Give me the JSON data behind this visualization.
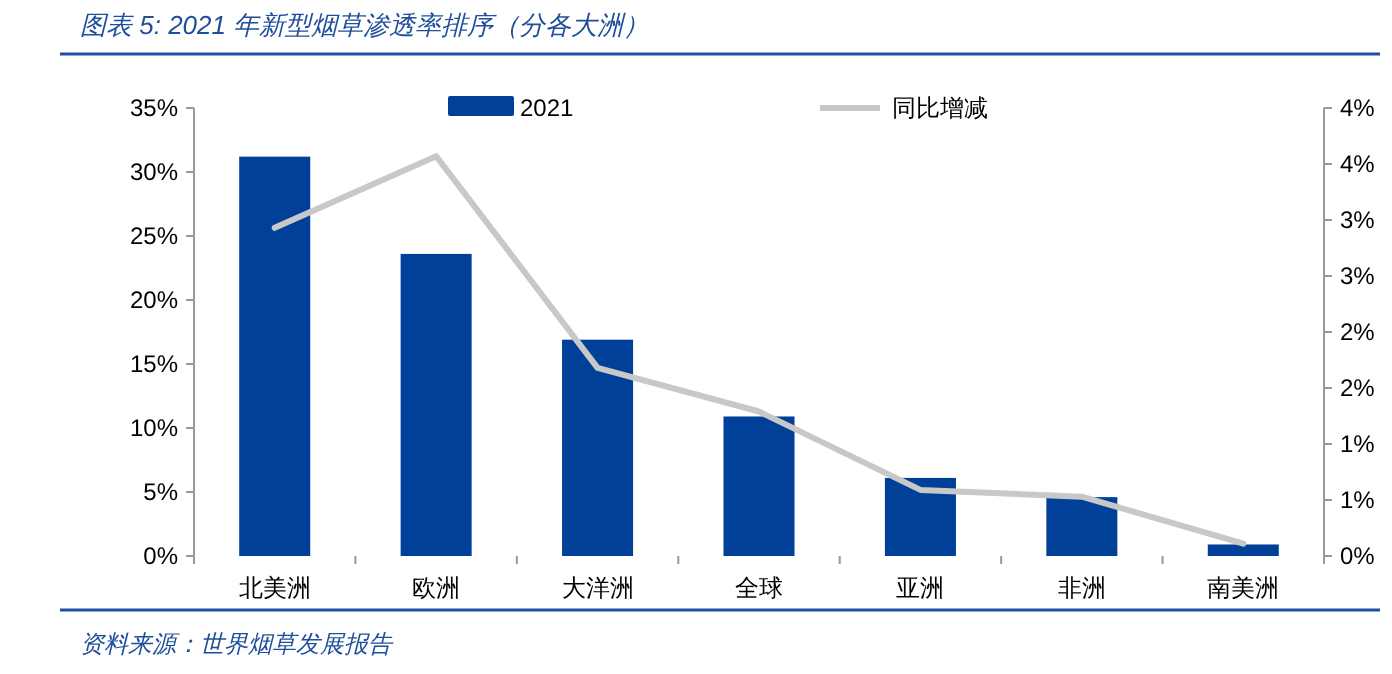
{
  "chart_data": {
    "type": "bar",
    "title": "图表 5: 2021 年新型烟草渗透率排序（分各大洲）",
    "annotations": [
      "资料来源：世界烟草发展报告"
    ],
    "categories": [
      "北美洲",
      "欧洲",
      "大洋洲",
      "全球",
      "亚洲",
      "非洲",
      "南美洲"
    ],
    "series": [
      {
        "name": "2021",
        "color": "#004098",
        "values": [
          31.2,
          23.6,
          16.9,
          10.9,
          6.1,
          4.6,
          0.9
        ]
      },
      {
        "name": "同比增减",
        "type": "line",
        "axis": "y2",
        "color": "#c8c8c8",
        "values": [
          2.93,
          3.57,
          1.68,
          1.29,
          0.59,
          0.53,
          0.11
        ]
      }
    ],
    "ylim": [
      0,
      35
    ],
    "yticks": [
      {
        "value": 0,
        "label": "0%"
      },
      {
        "value": 5,
        "label": "5%"
      },
      {
        "value": 10,
        "label": "10%"
      },
      {
        "value": 15,
        "label": "15%"
      },
      {
        "value": 20,
        "label": "20%"
      },
      {
        "value": 25,
        "label": "25%"
      },
      {
        "value": 30,
        "label": "30%"
      },
      {
        "value": 35,
        "label": "35%"
      }
    ],
    "y2lim": [
      0,
      4
    ],
    "y2ticks": [
      {
        "value": 0,
        "label": "0%"
      },
      {
        "value": 0.5,
        "label": "1%"
      },
      {
        "value": 1,
        "label": "1%"
      },
      {
        "value": 1.5,
        "label": "2%"
      },
      {
        "value": 2,
        "label": "2%"
      },
      {
        "value": 2.5,
        "label": "3%"
      },
      {
        "value": 3,
        "label": "3%"
      },
      {
        "value": 3.5,
        "label": "4%"
      },
      {
        "value": 4,
        "label": "4%"
      }
    ],
    "legend": "top",
    "grid": false,
    "marker": "none",
    "line_style": "solid"
  }
}
